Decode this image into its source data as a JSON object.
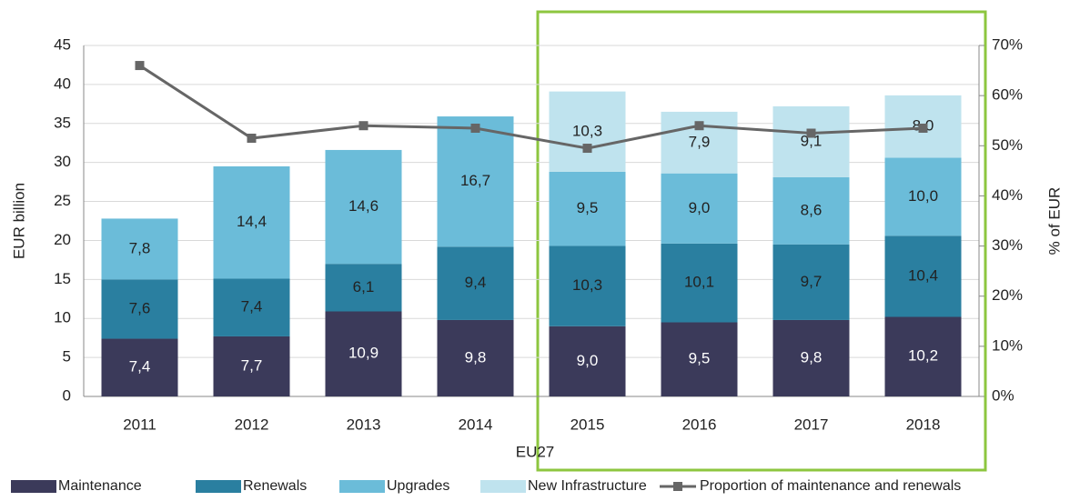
{
  "chart_data": {
    "type": "bar",
    "categories": [
      "2011",
      "2012",
      "2013",
      "2014",
      "2015",
      "2016",
      "2017",
      "2018"
    ],
    "series": [
      {
        "name": "Maintenance",
        "color": "#3b3a5a",
        "values": [
          7.4,
          7.7,
          10.9,
          9.8,
          9.0,
          9.5,
          9.8,
          10.2
        ],
        "value_labels": [
          "7,4",
          "7,7",
          "10,9",
          "9,8",
          "9,0",
          "9,5",
          "9,8",
          "10,2"
        ]
      },
      {
        "name": "Renewals",
        "color": "#2a7fa0",
        "values": [
          7.6,
          7.4,
          6.1,
          9.4,
          10.3,
          10.1,
          9.7,
          10.4
        ],
        "value_labels": [
          "7,6",
          "7,4",
          "6,1",
          "9,4",
          "10,3",
          "10,1",
          "9,7",
          "10,4"
        ]
      },
      {
        "name": "Upgrades",
        "color": "#6bbcd9",
        "values": [
          7.8,
          14.4,
          14.6,
          16.7,
          9.5,
          9.0,
          8.6,
          10.0
        ],
        "value_labels": [
          "7,8",
          "14,4",
          "14,6",
          "16,7",
          "9,5",
          "9,0",
          "8,6",
          "10,0"
        ]
      },
      {
        "name": "New Infrastructure",
        "color": "#bfe3ee",
        "values": [
          null,
          null,
          null,
          null,
          10.3,
          7.9,
          9.1,
          8.0
        ],
        "value_labels": [
          null,
          null,
          null,
          null,
          "10,3",
          "7,9",
          "9,1",
          "8,0"
        ]
      },
      {
        "name": "Proportion of maintenance and renewals",
        "type": "line",
        "axis": "y2",
        "color": "#666666",
        "values": [
          66,
          51.5,
          54,
          53.5,
          49.5,
          54,
          52.5,
          53.5
        ]
      }
    ],
    "x_label": "EU27",
    "y_label": "EUR billion",
    "y2_label": "% of EUR",
    "ylim": [
      0,
      45
    ],
    "yticks": [
      0,
      5,
      10,
      15,
      20,
      25,
      30,
      35,
      40,
      45
    ],
    "y2lim": [
      0,
      70
    ],
    "y2ticks": [
      {
        "value": 0,
        "label": "0%"
      },
      {
        "value": 10,
        "label": "10%"
      },
      {
        "value": 20,
        "label": "20%"
      },
      {
        "value": 30,
        "label": "30%"
      },
      {
        "value": 40,
        "label": "40%"
      },
      {
        "value": 50,
        "label": "50%"
      },
      {
        "value": 60,
        "label": "60%"
      },
      {
        "value": 70,
        "label": "70%"
      }
    ],
    "grid": true,
    "legend": "bottom"
  }
}
